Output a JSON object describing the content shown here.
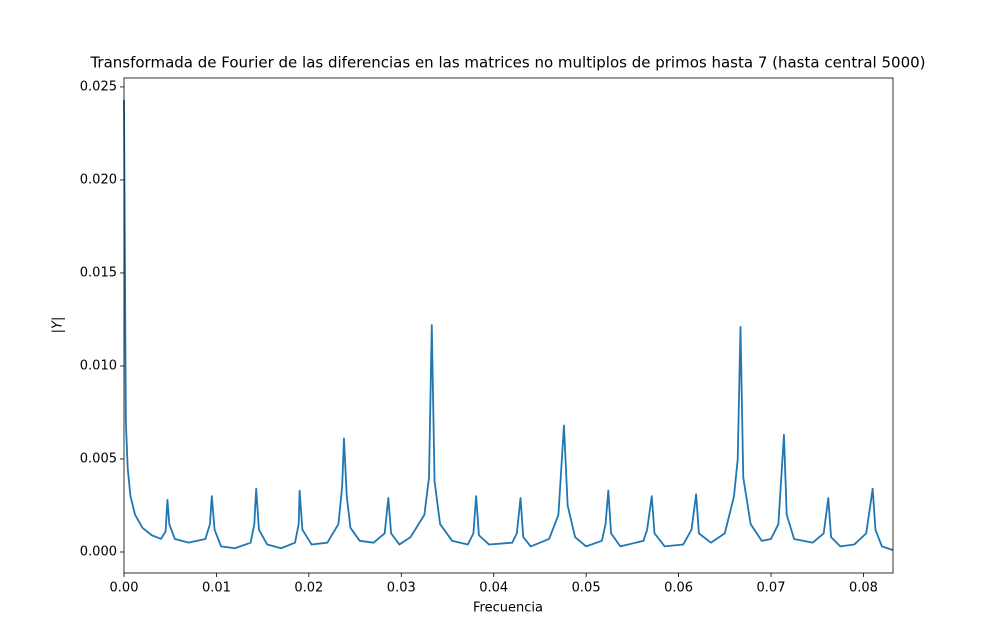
{
  "chart_data": {
    "type": "line",
    "title": "Transformada de Fourier de las diferencias en las matrices no multiplos de primos hasta 7 (hasta central 5000)",
    "x_label": "Frecuencia",
    "y_label": "|Y|",
    "color": "#1f77b4",
    "xlim": [
      0,
      0.0832
    ],
    "ylim": [
      -0.00113,
      0.02548
    ],
    "xticks": [
      {
        "value": 0,
        "label": "0.00"
      },
      {
        "value": 0.01,
        "label": "0.01"
      },
      {
        "value": 0.02,
        "label": "0.02"
      },
      {
        "value": 0.03,
        "label": "0.03"
      },
      {
        "value": 0.04,
        "label": "0.04"
      },
      {
        "value": 0.05,
        "label": "0.05"
      },
      {
        "value": 0.06,
        "label": "0.06"
      },
      {
        "value": 0.07,
        "label": "0.07"
      },
      {
        "value": 0.08,
        "label": "0.08"
      }
    ],
    "yticks": [
      {
        "value": 0,
        "label": "0.000"
      },
      {
        "value": 0.005,
        "label": "0.005"
      },
      {
        "value": 0.01,
        "label": "0.010"
      },
      {
        "value": 0.015,
        "label": "0.015"
      },
      {
        "value": 0.02,
        "label": "0.020"
      },
      {
        "value": 0.025,
        "label": "0.025"
      }
    ],
    "x": [
      0,
      0.0002,
      0.0004,
      0.0007,
      0.0012,
      0.002,
      0.003,
      0.004,
      0.0045,
      0.0047,
      0.0049,
      0.0055,
      0.007,
      0.0088,
      0.0093,
      0.0095,
      0.0098,
      0.0105,
      0.012,
      0.0137,
      0.0141,
      0.0143,
      0.0146,
      0.0155,
      0.017,
      0.0185,
      0.0189,
      0.019,
      0.0193,
      0.0203,
      0.022,
      0.0232,
      0.0236,
      0.0238,
      0.0241,
      0.0245,
      0.0255,
      0.027,
      0.0282,
      0.0286,
      0.0289,
      0.0298,
      0.031,
      0.0325,
      0.033,
      0.0333,
      0.0336,
      0.0342,
      0.0355,
      0.0372,
      0.0378,
      0.0381,
      0.0384,
      0.0395,
      0.042,
      0.0425,
      0.0429,
      0.0432,
      0.044,
      0.046,
      0.047,
      0.0476,
      0.048,
      0.0488,
      0.05,
      0.0517,
      0.0521,
      0.0524,
      0.0527,
      0.0537,
      0.0562,
      0.0566,
      0.0571,
      0.0574,
      0.0585,
      0.0605,
      0.0614,
      0.0619,
      0.0622,
      0.0635,
      0.065,
      0.066,
      0.0664,
      0.0667,
      0.067,
      0.0678,
      0.069,
      0.07,
      0.0708,
      0.0714,
      0.0717,
      0.0725,
      0.0745,
      0.0757,
      0.0762,
      0.0765,
      0.0775,
      0.079,
      0.0803,
      0.081,
      0.0813,
      0.082,
      0.0832
    ],
    "values": [
      0.0243,
      0.007,
      0.0045,
      0.003,
      0.002,
      0.0013,
      0.0009,
      0.0007,
      0.0011,
      0.0028,
      0.0015,
      0.0007,
      0.0005,
      0.0007,
      0.0015,
      0.003,
      0.0012,
      0.0003,
      0.0002,
      0.0005,
      0.0015,
      0.0034,
      0.0012,
      0.0004,
      0.0002,
      0.0005,
      0.0015,
      0.0033,
      0.0012,
      0.0004,
      0.0005,
      0.0015,
      0.0035,
      0.0061,
      0.003,
      0.0013,
      0.0006,
      0.0005,
      0.001,
      0.0029,
      0.001,
      0.0004,
      0.0008,
      0.002,
      0.004,
      0.0122,
      0.0038,
      0.0015,
      0.0006,
      0.0004,
      0.001,
      0.003,
      0.0009,
      0.0004,
      0.0005,
      0.001,
      0.0029,
      0.0008,
      0.0003,
      0.0007,
      0.002,
      0.0068,
      0.0025,
      0.0008,
      0.0003,
      0.0006,
      0.0015,
      0.0033,
      0.001,
      0.0003,
      0.0006,
      0.0012,
      0.003,
      0.001,
      0.0003,
      0.0004,
      0.0012,
      0.0031,
      0.001,
      0.0005,
      0.001,
      0.003,
      0.005,
      0.0121,
      0.004,
      0.0015,
      0.0006,
      0.0007,
      0.0015,
      0.0063,
      0.002,
      0.0007,
      0.0005,
      0.001,
      0.0029,
      0.0008,
      0.0003,
      0.0004,
      0.001,
      0.0034,
      0.0012,
      0.0003,
      0.0001
    ]
  }
}
